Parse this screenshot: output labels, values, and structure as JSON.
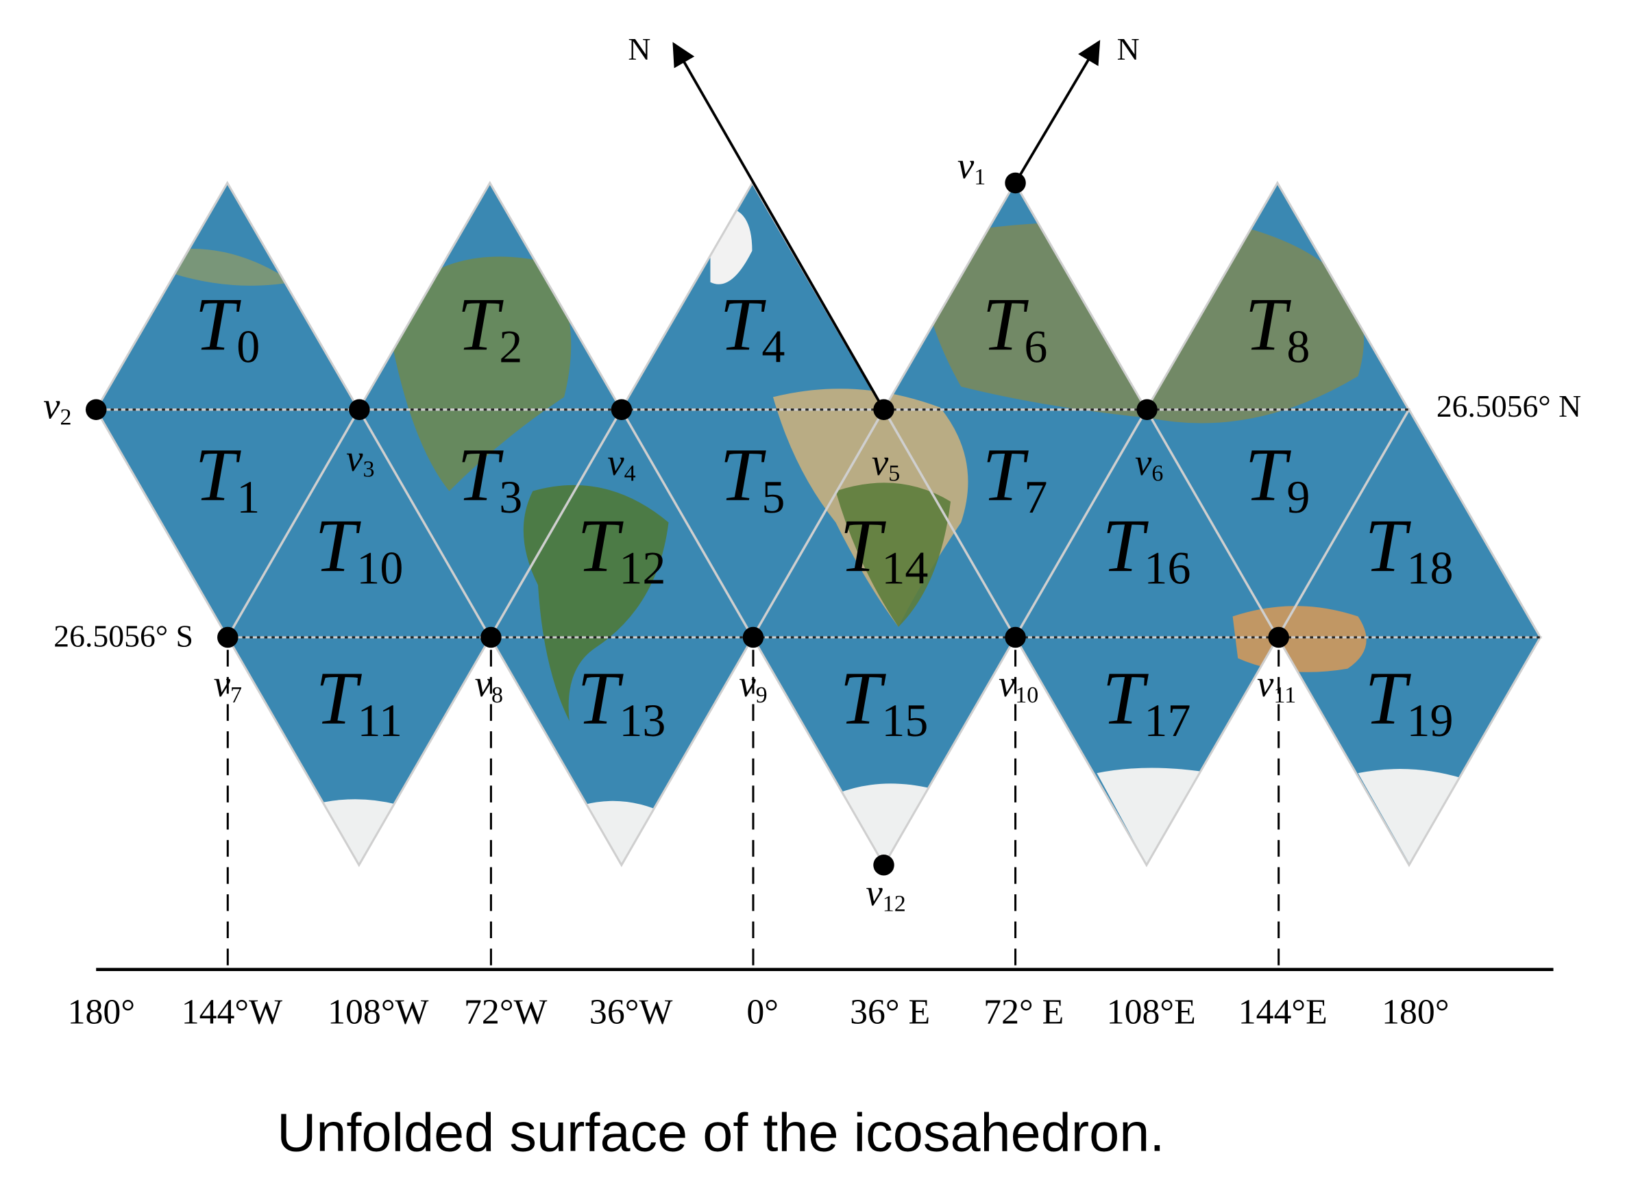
{
  "north_labels": [
    "N",
    "N"
  ],
  "latitude_labels": {
    "north": "26.5056° N",
    "south": "26.5056° S"
  },
  "faces": [
    {
      "letter": "T",
      "sub": "0"
    },
    {
      "letter": "T",
      "sub": "1"
    },
    {
      "letter": "T",
      "sub": "2"
    },
    {
      "letter": "T",
      "sub": "3"
    },
    {
      "letter": "T",
      "sub": "4"
    },
    {
      "letter": "T",
      "sub": "5"
    },
    {
      "letter": "T",
      "sub": "6"
    },
    {
      "letter": "T",
      "sub": "7"
    },
    {
      "letter": "T",
      "sub": "8"
    },
    {
      "letter": "T",
      "sub": "9"
    },
    {
      "letter": "T",
      "sub": "10"
    },
    {
      "letter": "T",
      "sub": "11"
    },
    {
      "letter": "T",
      "sub": "12"
    },
    {
      "letter": "T",
      "sub": "13"
    },
    {
      "letter": "T",
      "sub": "14"
    },
    {
      "letter": "T",
      "sub": "15"
    },
    {
      "letter": "T",
      "sub": "16"
    },
    {
      "letter": "T",
      "sub": "17"
    },
    {
      "letter": "T",
      "sub": "18"
    },
    {
      "letter": "T",
      "sub": "19"
    }
  ],
  "vertices": [
    {
      "letter": "v",
      "sub": "1"
    },
    {
      "letter": "v",
      "sub": "2"
    },
    {
      "letter": "v",
      "sub": "3"
    },
    {
      "letter": "v",
      "sub": "4"
    },
    {
      "letter": "v",
      "sub": "5"
    },
    {
      "letter": "v",
      "sub": "6"
    },
    {
      "letter": "v",
      "sub": "7"
    },
    {
      "letter": "v",
      "sub": "8"
    },
    {
      "letter": "v",
      "sub": "9"
    },
    {
      "letter": "v",
      "sub": "10"
    },
    {
      "letter": "v",
      "sub": "11"
    },
    {
      "letter": "v",
      "sub": "12"
    }
  ],
  "longitude_labels": [
    "180°",
    "144°W",
    "108°W",
    "72°W",
    "36°W",
    "0°",
    "36° E",
    "72° E",
    "108°E",
    "144°E",
    "180°"
  ],
  "caption": "Unfolded surface of the icosahedron."
}
